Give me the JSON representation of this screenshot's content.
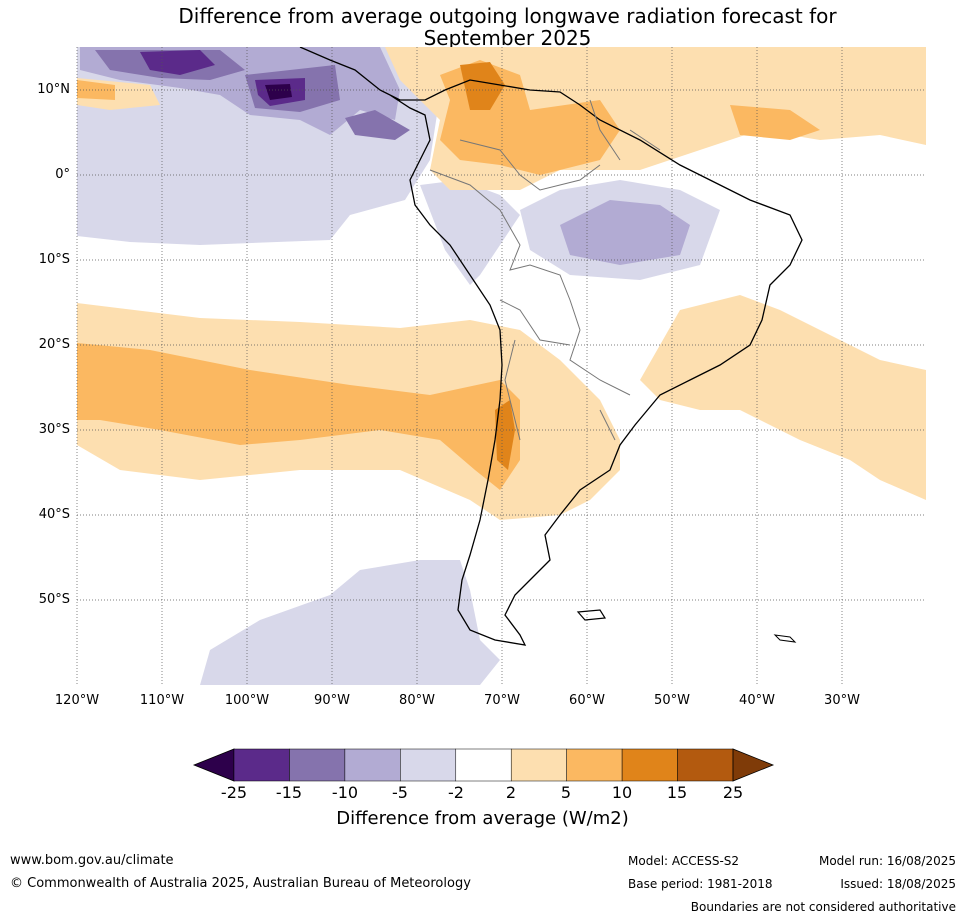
{
  "title": {
    "line1": "Difference from average outgoing longwave radiation forecast for",
    "line2": "September 2025"
  },
  "map": {
    "region": "South America",
    "lat_labels": [
      "10°N",
      "0°",
      "10°S",
      "20°S",
      "30°S",
      "40°S",
      "50°S"
    ],
    "lon_labels": [
      "120°W",
      "110°W",
      "100°W",
      "90°W",
      "80°W",
      "70°W",
      "60°W",
      "50°W",
      "40°W",
      "30°W"
    ]
  },
  "colorbar": {
    "ticks": [
      "-25",
      "-15",
      "-10",
      "-5",
      "-2",
      "2",
      "5",
      "10",
      "15",
      "25"
    ],
    "colors": [
      "#5b2a8a",
      "#8573ad",
      "#b2abd3",
      "#d8d8ea",
      "#ffffff",
      "#fddfb0",
      "#fbb861",
      "#e0841a",
      "#b35a0f"
    ],
    "under_color": "#2d004b",
    "over_color": "#7f3b08",
    "label": "Difference from average (W/m2)"
  },
  "footer": {
    "website": "www.bom.gov.au/climate",
    "copyright": "© Commonwealth of Australia 2025, Australian Bureau of Meteorology",
    "model": "Model: ACCESS-S2",
    "base_period": "Base period: 1981-2018",
    "model_run": "Model run: 16/08/2025",
    "issued": "Issued: 18/08/2025",
    "disclaimer": "Boundaries are not considered authoritative"
  }
}
